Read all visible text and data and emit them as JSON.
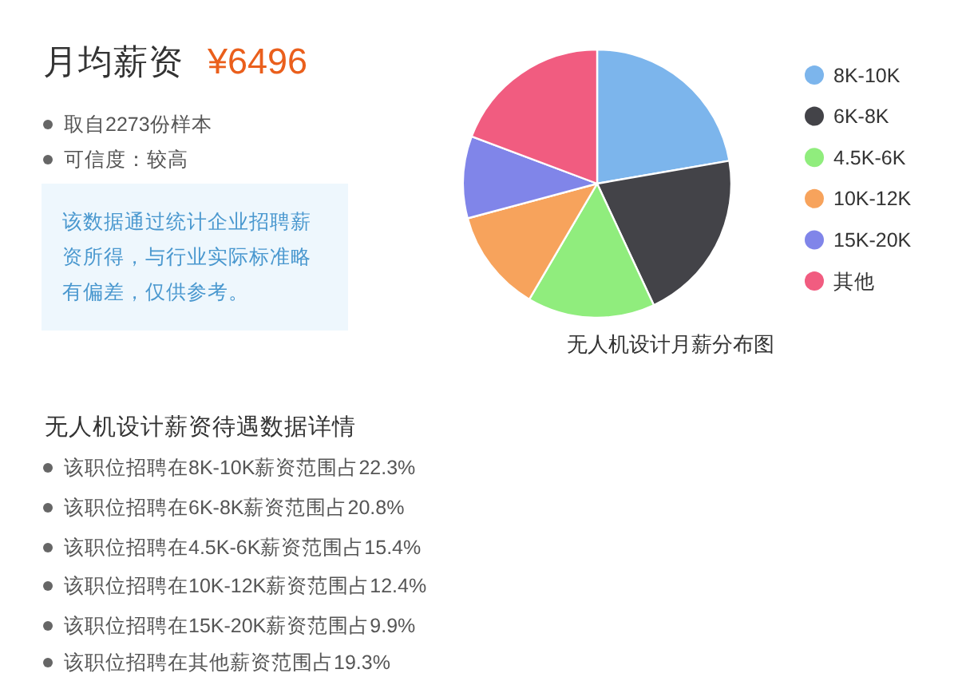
{
  "chart_data": {
    "type": "pie",
    "title": "无人机设计月薪分布图",
    "categories": [
      "8K-10K",
      "6K-8K",
      "4.5K-6K",
      "10K-12K",
      "15K-20K",
      "其他"
    ],
    "values": [
      22.3,
      20.8,
      15.4,
      12.4,
      9.9,
      19.3
    ],
    "colors": [
      "#7cb5ec",
      "#434348",
      "#90ed7d",
      "#f7a35c",
      "#8085e9",
      "#f15c80"
    ],
    "legend": "right",
    "annotations": [
      "月均薪资",
      "¥6496",
      "取自2273份样本",
      "可信度：较高",
      "该数据通过统计企业招聘薪资所得，与行业实际标准略有偏差，仅供参考。",
      "无人机设计薪资待遇数据详情",
      "该职位招聘在8K-10K薪资范围占22.3%",
      "该职位招聘在6K-8K薪资范围占20.8%",
      "该职位招聘在4.5K-6K薪资范围占15.4%",
      "该职位招聘在10K-12K薪资范围占12.4%",
      "该职位招聘在15K-20K薪资范围占9.9%",
      "该职位招聘在其他薪资范围占19.3%"
    ]
  }
}
